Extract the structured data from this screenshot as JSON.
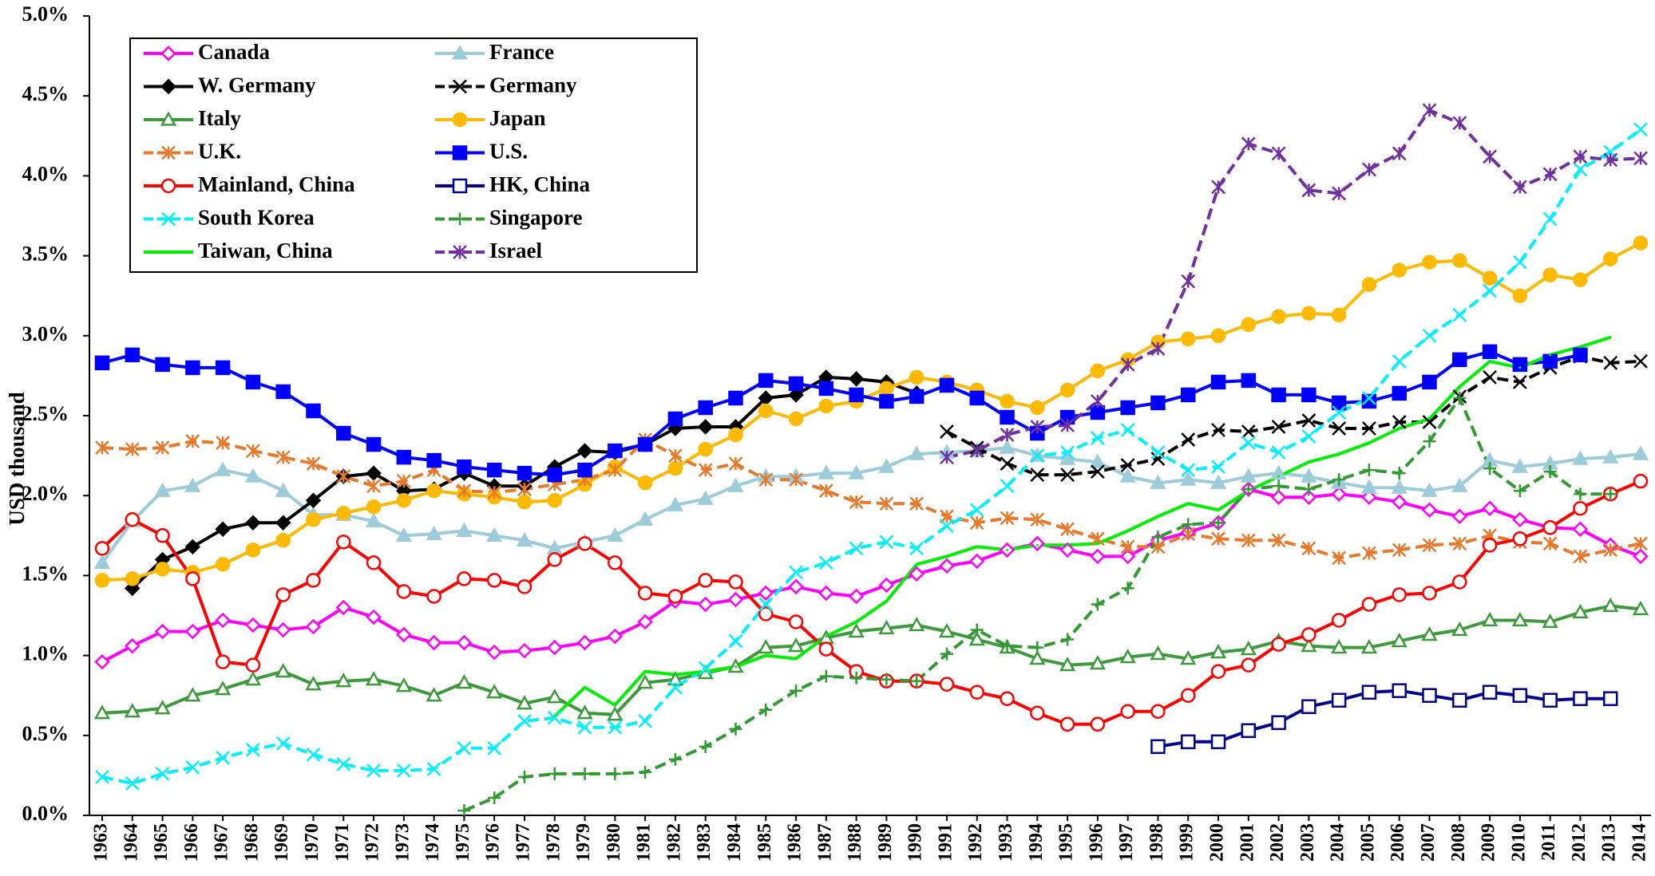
{
  "chart_data": {
    "type": "line",
    "y_label": "USD thousand",
    "categories": [
      "1963",
      "1964",
      "1965",
      "1966",
      "1967",
      "1968",
      "1969",
      "1970",
      "1971",
      "1972",
      "1973",
      "1974",
      "1975",
      "1976",
      "1977",
      "1978",
      "1979",
      "1980",
      "1981",
      "1982",
      "1983",
      "1984",
      "1985",
      "1986",
      "1987",
      "1988",
      "1989",
      "1990",
      "1991",
      "1992",
      "1993",
      "1994",
      "1995",
      "1996",
      "1997",
      "1998",
      "1999",
      "2000",
      "2001",
      "2002",
      "2003",
      "2004",
      "2005",
      "2006",
      "2007",
      "2008",
      "2009",
      "2010",
      "2011",
      "2012",
      "2013",
      "2014"
    ],
    "ylim": [
      0,
      5
    ],
    "yticks": [
      {
        "value": 0,
        "label": "0.0%"
      },
      {
        "value": 0.5,
        "label": "0.5%"
      },
      {
        "value": 1,
        "label": "1.0%"
      },
      {
        "value": 1.5,
        "label": "1.5%"
      },
      {
        "value": 2,
        "label": "2.0%"
      },
      {
        "value": 2.5,
        "label": "2.5%"
      },
      {
        "value": 3,
        "label": "3.0%"
      },
      {
        "value": 3.5,
        "label": "3.5%"
      },
      {
        "value": 4,
        "label": "4.0%"
      },
      {
        "value": 4.5,
        "label": "4.5%"
      },
      {
        "value": 5,
        "label": "5.0%"
      }
    ],
    "grid": false,
    "legend": "upper left",
    "series": [
      {
        "name": "Canada",
        "color": "#ff00ff",
        "marker": "diamond-open",
        "dashed": false,
        "values": [
          0.96,
          1.06,
          1.15,
          1.15,
          1.22,
          1.19,
          1.16,
          1.18,
          1.3,
          1.24,
          1.13,
          1.08,
          1.08,
          1.02,
          1.03,
          1.05,
          1.08,
          1.12,
          1.21,
          1.34,
          1.32,
          1.35,
          1.39,
          1.43,
          1.39,
          1.37,
          1.44,
          1.51,
          1.56,
          1.59,
          1.66,
          1.7,
          1.66,
          1.62,
          1.62,
          1.72,
          1.77,
          1.83,
          2.04,
          1.99,
          1.99,
          2.01,
          1.99,
          1.96,
          1.91,
          1.87,
          1.92,
          1.85,
          1.8,
          1.79,
          1.69,
          1.62
        ]
      },
      {
        "name": "France",
        "color": "#9ccbd9",
        "marker": "triangle",
        "dashed": false,
        "values": [
          1.58,
          1.84,
          2.03,
          2.06,
          2.16,
          2.12,
          2.03,
          1.88,
          1.88,
          1.84,
          1.75,
          1.76,
          1.78,
          1.75,
          1.72,
          1.67,
          1.71,
          1.75,
          1.85,
          1.94,
          1.98,
          2.06,
          2.12,
          2.12,
          2.14,
          2.14,
          2.18,
          2.26,
          2.27,
          2.28,
          2.3,
          2.25,
          2.23,
          2.21,
          2.12,
          2.08,
          2.1,
          2.08,
          2.12,
          2.14,
          2.12,
          2.08,
          2.05,
          2.05,
          2.03,
          2.06,
          2.22,
          2.18,
          2.2,
          2.23,
          2.24,
          2.26
        ]
      },
      {
        "name": "W. Germany",
        "color": "#000000",
        "marker": "diamond",
        "dashed": false,
        "values": [
          null,
          1.42,
          1.6,
          1.68,
          1.79,
          1.83,
          1.83,
          1.97,
          2.12,
          2.14,
          2.03,
          2.04,
          2.14,
          2.06,
          2.06,
          2.18,
          2.28,
          2.27,
          2.32,
          2.42,
          2.43,
          2.43,
          2.61,
          2.63,
          2.74,
          2.73,
          2.71,
          2.64,
          null,
          null,
          null,
          null,
          null,
          null,
          null,
          null,
          null,
          null,
          null,
          null,
          null,
          null,
          null,
          null,
          null,
          null,
          null,
          null,
          null,
          null,
          null,
          null
        ]
      },
      {
        "name": "Germany",
        "color": "#000000",
        "marker": "x",
        "dashed": true,
        "values": [
          null,
          null,
          null,
          null,
          null,
          null,
          null,
          null,
          null,
          null,
          null,
          null,
          null,
          null,
          null,
          null,
          null,
          null,
          null,
          null,
          null,
          null,
          null,
          null,
          null,
          null,
          null,
          null,
          2.4,
          2.3,
          2.2,
          2.13,
          2.13,
          2.15,
          2.19,
          2.23,
          2.35,
          2.41,
          2.4,
          2.43,
          2.47,
          2.42,
          2.42,
          2.46,
          2.46,
          2.62,
          2.74,
          2.71,
          2.8,
          2.87,
          2.83,
          2.84
        ]
      },
      {
        "name": "Italy",
        "color": "#3c9a3c",
        "marker": "triangle-open",
        "dashed": false,
        "values": [
          0.64,
          0.65,
          0.67,
          0.75,
          0.79,
          0.85,
          0.9,
          0.82,
          0.84,
          0.85,
          0.81,
          0.75,
          0.83,
          0.77,
          0.7,
          0.74,
          0.64,
          0.63,
          0.83,
          0.85,
          0.89,
          0.93,
          1.05,
          1.06,
          1.11,
          1.15,
          1.17,
          1.19,
          1.15,
          1.1,
          1.05,
          0.98,
          0.94,
          0.95,
          0.99,
          1.01,
          0.98,
          1.02,
          1.04,
          1.09,
          1.06,
          1.05,
          1.05,
          1.09,
          1.13,
          1.16,
          1.22,
          1.22,
          1.21,
          1.27,
          1.31,
          1.29
        ]
      },
      {
        "name": "Japan",
        "color": "#ffb900",
        "marker": "circle",
        "dashed": false,
        "values": [
          1.47,
          1.48,
          1.54,
          1.52,
          1.57,
          1.66,
          1.72,
          1.85,
          1.89,
          1.93,
          1.97,
          2.03,
          2.01,
          1.99,
          1.96,
          1.97,
          2.07,
          2.18,
          2.08,
          2.17,
          2.29,
          2.38,
          2.53,
          2.48,
          2.56,
          2.59,
          2.67,
          2.74,
          2.71,
          2.66,
          2.59,
          2.55,
          2.66,
          2.78,
          2.85,
          2.96,
          2.98,
          3.0,
          3.07,
          3.12,
          3.14,
          3.13,
          3.32,
          3.41,
          3.46,
          3.47,
          3.36,
          3.25,
          3.38,
          3.35,
          3.48,
          3.58
        ]
      },
      {
        "name": "U.K.",
        "color": "#e8782a",
        "marker": "asterisk",
        "dashed": true,
        "values": [
          2.3,
          2.29,
          2.3,
          2.34,
          2.33,
          2.28,
          2.24,
          2.2,
          2.12,
          2.06,
          2.09,
          2.16,
          2.03,
          2.02,
          2.04,
          2.07,
          2.1,
          2.16,
          2.35,
          2.25,
          2.16,
          2.2,
          2.1,
          2.1,
          2.03,
          1.96,
          1.95,
          1.95,
          1.87,
          1.83,
          1.86,
          1.85,
          1.79,
          1.73,
          1.68,
          1.68,
          1.76,
          1.73,
          1.72,
          1.72,
          1.67,
          1.61,
          1.64,
          1.66,
          1.69,
          1.7,
          1.75,
          1.71,
          1.7,
          1.62,
          1.66,
          1.7
        ]
      },
      {
        "name": "U.S.",
        "color": "#0000ff",
        "marker": "square",
        "dashed": false,
        "values": [
          2.83,
          2.88,
          2.82,
          2.8,
          2.8,
          2.71,
          2.65,
          2.53,
          2.39,
          2.32,
          2.24,
          2.22,
          2.18,
          2.16,
          2.14,
          2.13,
          2.16,
          2.28,
          2.32,
          2.48,
          2.55,
          2.61,
          2.72,
          2.7,
          2.67,
          2.63,
          2.59,
          2.62,
          2.69,
          2.61,
          2.49,
          2.39,
          2.49,
          2.52,
          2.55,
          2.58,
          2.63,
          2.71,
          2.72,
          2.63,
          2.63,
          2.58,
          2.59,
          2.64,
          2.71,
          2.85,
          2.9,
          2.82,
          2.84,
          2.88,
          null,
          null
        ]
      },
      {
        "name": "Mainland, China",
        "color": "#ff0000",
        "marker": "circle-open",
        "dashed": false,
        "values": [
          1.67,
          1.85,
          1.75,
          1.48,
          0.96,
          0.94,
          1.38,
          1.47,
          1.71,
          1.58,
          1.4,
          1.37,
          1.48,
          1.47,
          1.43,
          1.6,
          1.7,
          1.58,
          1.39,
          1.37,
          1.47,
          1.46,
          1.26,
          1.21,
          1.04,
          0.9,
          0.84,
          0.84,
          0.82,
          0.77,
          0.73,
          0.64,
          0.57,
          0.57,
          0.65,
          0.65,
          0.75,
          0.9,
          0.94,
          1.07,
          1.13,
          1.22,
          1.32,
          1.38,
          1.39,
          1.46,
          1.69,
          1.73,
          1.8,
          1.92,
          2.01,
          2.09
        ]
      },
      {
        "name": "HK, China",
        "color": "#00008b",
        "marker": "square-open",
        "dashed": false,
        "values": [
          null,
          null,
          null,
          null,
          null,
          null,
          null,
          null,
          null,
          null,
          null,
          null,
          null,
          null,
          null,
          null,
          null,
          null,
          null,
          null,
          null,
          null,
          null,
          null,
          null,
          null,
          null,
          null,
          null,
          null,
          null,
          null,
          null,
          null,
          null,
          0.43,
          0.46,
          0.46,
          0.53,
          0.58,
          0.68,
          0.72,
          0.77,
          0.78,
          0.75,
          0.72,
          0.77,
          0.75,
          0.72,
          0.73,
          0.73,
          null
        ]
      },
      {
        "name": "South Korea",
        "color": "#00f0ff",
        "marker": "x",
        "dashed": true,
        "values": [
          0.24,
          0.2,
          0.26,
          0.3,
          0.36,
          0.41,
          0.45,
          0.38,
          0.32,
          0.28,
          0.28,
          0.29,
          0.42,
          0.42,
          0.59,
          0.61,
          0.55,
          0.55,
          0.59,
          0.8,
          0.92,
          1.09,
          1.32,
          1.52,
          1.58,
          1.67,
          1.71,
          1.67,
          1.81,
          1.91,
          2.06,
          2.25,
          2.27,
          2.36,
          2.41,
          2.27,
          2.16,
          2.18,
          2.33,
          2.27,
          2.37,
          2.52,
          2.61,
          2.84,
          3.0,
          3.13,
          3.28,
          3.46,
          3.73,
          4.04,
          4.15,
          4.29
        ]
      },
      {
        "name": "Singapore",
        "color": "#339933",
        "marker": "plus",
        "dashed": true,
        "values": [
          null,
          null,
          null,
          null,
          null,
          null,
          null,
          null,
          null,
          null,
          null,
          null,
          0.03,
          0.11,
          0.24,
          0.26,
          0.26,
          0.26,
          0.27,
          0.35,
          0.43,
          0.54,
          0.66,
          0.78,
          0.87,
          0.86,
          0.85,
          0.84,
          1.01,
          1.16,
          1.06,
          1.05,
          1.1,
          1.32,
          1.42,
          1.74,
          1.82,
          1.83,
          2.04,
          2.06,
          2.04,
          2.1,
          2.16,
          2.14,
          2.34,
          2.61,
          2.17,
          2.03,
          2.15,
          2.01,
          2.01,
          null
        ]
      },
      {
        "name": "Taiwan, China",
        "color": "#00ee00",
        "marker": "none",
        "dashed": false,
        "values": [
          null,
          null,
          null,
          null,
          null,
          null,
          null,
          null,
          null,
          null,
          null,
          null,
          null,
          null,
          null,
          0.62,
          0.8,
          0.69,
          0.9,
          0.88,
          0.9,
          0.93,
          1.0,
          0.98,
          1.12,
          1.21,
          1.34,
          1.57,
          1.62,
          1.68,
          1.66,
          1.69,
          1.69,
          1.7,
          1.78,
          1.87,
          1.95,
          1.91,
          2.03,
          2.12,
          2.21,
          2.26,
          2.33,
          2.42,
          2.48,
          2.68,
          2.84,
          2.8,
          2.88,
          2.93,
          2.99,
          null
        ]
      },
      {
        "name": "Israel",
        "color": "#7030a0",
        "marker": "asterisk",
        "dashed": true,
        "values": [
          null,
          null,
          null,
          null,
          null,
          null,
          null,
          null,
          null,
          null,
          null,
          null,
          null,
          null,
          null,
          null,
          null,
          null,
          null,
          null,
          null,
          null,
          null,
          null,
          null,
          null,
          null,
          null,
          2.24,
          2.28,
          2.38,
          2.43,
          2.44,
          2.59,
          2.82,
          2.92,
          3.34,
          3.93,
          4.2,
          4.14,
          3.91,
          3.89,
          4.04,
          4.14,
          4.41,
          4.33,
          4.12,
          3.93,
          4.01,
          4.12,
          4.1,
          4.11
        ]
      }
    ]
  }
}
